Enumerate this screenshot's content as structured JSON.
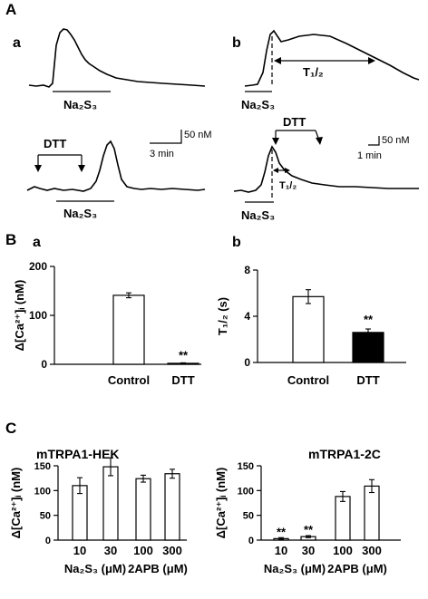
{
  "panels": {
    "A": "A",
    "A_a": "a",
    "A_b": "b",
    "B": "B",
    "B_a": "a",
    "B_b": "b",
    "C": "C"
  },
  "panel_A": {
    "stimulus": "Na₂S₃",
    "dtt": "DTT",
    "t_half": "T₁/₂",
    "scale_a": {
      "conc": "50 nM",
      "time": "3 min"
    },
    "scale_b": {
      "conc": "50 nM",
      "time": "1 min"
    }
  },
  "chart_data": [
    {
      "id": "Ba",
      "type": "bar",
      "categories": [
        "Control",
        "DTT"
      ],
      "values": [
        141,
        2
      ],
      "errors": [
        5,
        1
      ],
      "fills": [
        "#ffffff",
        "#000000"
      ],
      "significance": [
        "",
        "**"
      ],
      "ylabel": "Δ[Ca²⁺]ᵢ (nM)",
      "ylim": [
        0,
        200
      ],
      "yticks": [
        "0",
        "100",
        "200"
      ],
      "ytick_values": [
        0,
        100,
        200
      ]
    },
    {
      "id": "Bb",
      "type": "bar",
      "categories": [
        "Control",
        "DTT"
      ],
      "values": [
        5.7,
        2.6
      ],
      "errors": [
        0.6,
        0.3
      ],
      "fills": [
        "#ffffff",
        "#000000"
      ],
      "significance": [
        "",
        "**"
      ],
      "ylabel": "T₁/₂ (s)",
      "ylim": [
        0,
        8
      ],
      "yticks": [
        "0",
        "4",
        "8"
      ],
      "ytick_values": [
        0,
        4,
        8
      ]
    },
    {
      "id": "C1",
      "type": "bar",
      "title": "mTRPA1-HEK",
      "categories": [
        "10",
        "30",
        "100",
        "300"
      ],
      "values": [
        110,
        148,
        124,
        134
      ],
      "errors": [
        16,
        18,
        7,
        9
      ],
      "significance": [
        "",
        "",
        "",
        ""
      ],
      "groups": [
        {
          "label": "Na₂S₃ (μM)",
          "members": [
            0,
            1
          ]
        },
        {
          "label": "2APB (μM)",
          "members": [
            2,
            3
          ]
        }
      ],
      "ylabel": "Δ[Ca²⁺]ᵢ (nM)",
      "ylim": [
        0,
        150
      ],
      "yticks": [
        "0",
        "50",
        "100",
        "150"
      ],
      "ytick_values": [
        0,
        50,
        100,
        150
      ]
    },
    {
      "id": "C2",
      "type": "bar",
      "title": "mTRPA1-2C",
      "categories": [
        "10",
        "30",
        "100",
        "300"
      ],
      "values": [
        3,
        7,
        88,
        109
      ],
      "errors": [
        2,
        2,
        10,
        13
      ],
      "significance": [
        "**",
        "**",
        "",
        ""
      ],
      "groups": [
        {
          "label": "Na₂S₃ (μM)",
          "members": [
            0,
            1
          ]
        },
        {
          "label": "2APB (μM)",
          "members": [
            2,
            3
          ]
        }
      ],
      "ylabel": "Δ[Ca²⁺]ᵢ (nM)",
      "ylim": [
        0,
        150
      ],
      "yticks": [
        "0",
        "50",
        "100",
        "150"
      ],
      "ytick_values": [
        0,
        50,
        100,
        150
      ]
    }
  ]
}
